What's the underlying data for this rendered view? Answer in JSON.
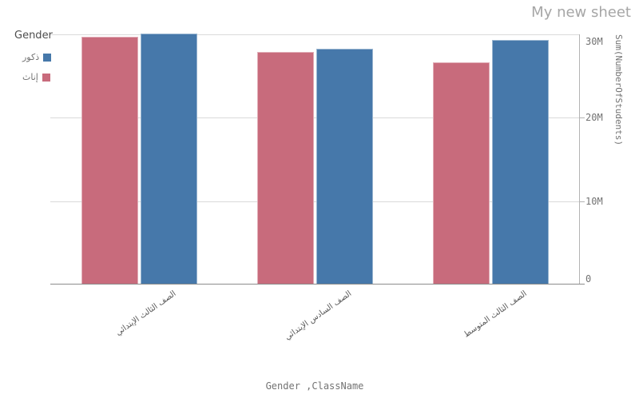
{
  "sheet": {
    "title": "My new sheet"
  },
  "legend": {
    "title": "Gender",
    "items": [
      {
        "label": "ذكور",
        "color": "#4678aa"
      },
      {
        "label": "إناث",
        "color": "#c86b7c"
      }
    ]
  },
  "chart_data": {
    "type": "bar",
    "title": "",
    "categories": [
      "الصف الثالث الإبتدائي",
      "الصف السادس الإبتدائي",
      "الصف الثالث المتوسط"
    ],
    "series": [
      {
        "name": "إناث",
        "color": "#c86b7c",
        "values": [
          29.7,
          27.9,
          26.6
        ]
      },
      {
        "name": "ذكور",
        "color": "#4678aa",
        "values": [
          30.1,
          28.3,
          29.3
        ]
      }
    ],
    "value_unit": "M",
    "ylim": [
      0,
      30
    ],
    "yticks": [
      {
        "label": "30M",
        "value": 30
      },
      {
        "label": "20M",
        "value": 20
      },
      {
        "label": "10M",
        "value": 10
      },
      {
        "label": "0",
        "value": 0
      }
    ],
    "ylabel": "Sum(NumberOfStudents)",
    "xlabel": "Gender ,ClassName",
    "grid": true,
    "legend_position": "top-left"
  }
}
